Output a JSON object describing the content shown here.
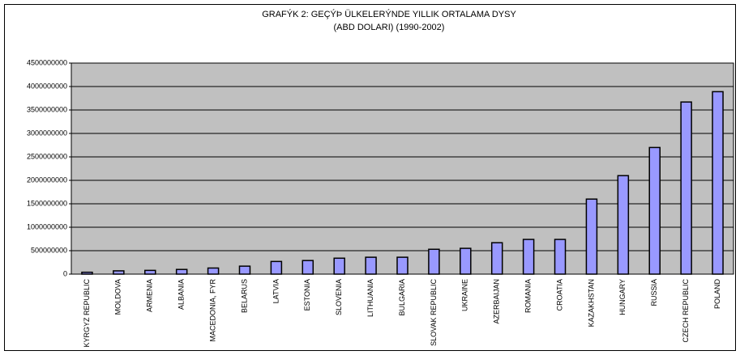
{
  "chart_data": {
    "type": "bar",
    "title": "GRAFÝK 2: GEÇÝÞ ÜLKELERÝNDE YILLIK ORTALAMA DYSY",
    "subtitle": "(ABD DOLARI) (1990-2002)",
    "categories": [
      "KYRGYZ REPUBLIC",
      "MOLDOVA",
      "ARMENIA",
      "ALBANIA",
      "MACEDONIA, FYR",
      "BELARUS",
      "LATVIA",
      "ESTONIA",
      "SLOVENIA",
      "LITHUANIA",
      "BULGARIA",
      "SLOVAK REPUBLIC",
      "UKRAINE",
      "AZERBAIJAN",
      "ROMANIA",
      "CROATIA",
      "KAZAKHSTAN",
      "HUNGARY",
      "RUSSIA",
      "CZECH REPUBLIC",
      "POLAND"
    ],
    "values": [
      40000000,
      70000000,
      80000000,
      100000000,
      130000000,
      170000000,
      270000000,
      290000000,
      340000000,
      360000000,
      360000000,
      530000000,
      550000000,
      670000000,
      740000000,
      740000000,
      1600000000,
      2100000000,
      2700000000,
      3670000000,
      3890000000
    ],
    "color": "#9999ff",
    "ylim": [
      0,
      4500000000
    ],
    "yticks": [
      0,
      500000000,
      1000000000,
      1500000000,
      2000000000,
      2500000000,
      3000000000,
      3500000000,
      4000000000,
      4500000000
    ],
    "grid": true
  }
}
